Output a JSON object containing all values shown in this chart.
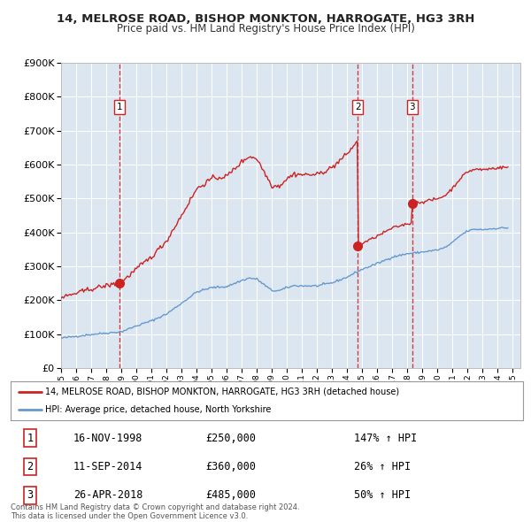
{
  "title": "14, MELROSE ROAD, BISHOP MONKTON, HARROGATE, HG3 3RH",
  "subtitle": "Price paid vs. HM Land Registry's House Price Index (HPI)",
  "legend_line1": "14, MELROSE ROAD, BISHOP MONKTON, HARROGATE, HG3 3RH (detached house)",
  "legend_line2": "HPI: Average price, detached house, North Yorkshire",
  "hpi_color": "#6699cc",
  "price_color": "#cc2222",
  "sale_color": "#cc2222",
  "plot_bg": "#dce6f1",
  "ylim": [
    0,
    900000
  ],
  "yticks": [
    0,
    100000,
    200000,
    300000,
    400000,
    500000,
    600000,
    700000,
    800000,
    900000
  ],
  "xlim_start": 1995.0,
  "xlim_end": 2025.5,
  "sales": [
    {
      "num": 1,
      "year": 1998.88,
      "price": 250000,
      "date": "16-NOV-1998",
      "pct": "147%",
      "dir": "↑"
    },
    {
      "num": 2,
      "year": 2014.7,
      "price": 360000,
      "date": "11-SEP-2014",
      "pct": "26%",
      "dir": "↑"
    },
    {
      "num": 3,
      "year": 2018.32,
      "price": 485000,
      "date": "26-APR-2018",
      "pct": "50%",
      "dir": "↑"
    }
  ],
  "footer": "Contains HM Land Registry data © Crown copyright and database right 2024.\nThis data is licensed under the Open Government Licence v3.0."
}
